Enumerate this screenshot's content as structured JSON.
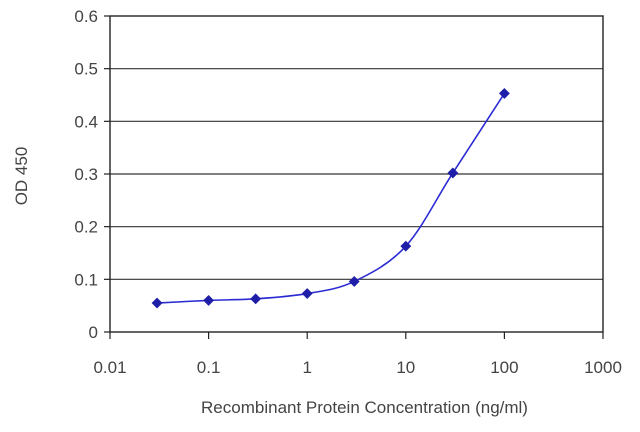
{
  "chart_data": {
    "type": "line",
    "xlabel": "Recombinant Protein Concentration (ng/ml)",
    "ylabel": "OD 450",
    "xscale": "log",
    "xlim": [
      0.01,
      1000
    ],
    "ylim": [
      0,
      0.6
    ],
    "grid": "horizontal",
    "x_ticks": [
      0.01,
      0.1,
      1,
      10,
      100,
      1000
    ],
    "x_tick_labels": [
      "0.01",
      "0.1",
      "1",
      "10",
      "100",
      "1000"
    ],
    "y_ticks": [
      0,
      0.1,
      0.2,
      0.3,
      0.4,
      0.5,
      0.6
    ],
    "y_tick_labels": [
      "0",
      "0.1",
      "0.2",
      "0.3",
      "0.4",
      "0.5",
      "0.6"
    ],
    "series": [
      {
        "color": "#2b2bd4",
        "x": [
          0.03,
          0.1,
          0.3,
          1,
          3,
          10,
          30,
          100
        ],
        "y": [
          0.055,
          0.06,
          0.063,
          0.073,
          0.096,
          0.163,
          0.302,
          0.453
        ]
      }
    ]
  }
}
